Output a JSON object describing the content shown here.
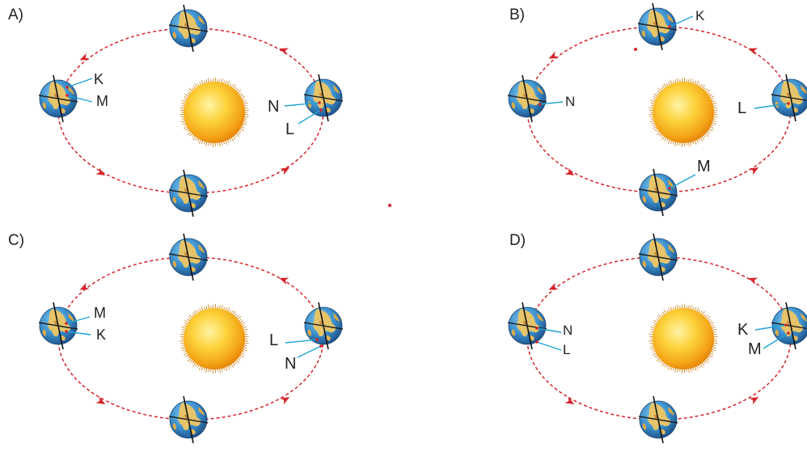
{
  "panels": [
    {
      "letter": "A)",
      "callouts": [
        {
          "text": "K",
          "pos": "left-top"
        },
        {
          "text": "M",
          "pos": "left-bottom"
        },
        {
          "text": "N",
          "pos": "right-top"
        },
        {
          "text": "L",
          "pos": "right-bottom"
        }
      ]
    },
    {
      "letter": "B)",
      "callouts": [
        {
          "text": "K",
          "pos": "top"
        },
        {
          "text": "N",
          "pos": "left"
        },
        {
          "text": "L",
          "pos": "right"
        },
        {
          "text": "M",
          "pos": "bottom"
        }
      ]
    },
    {
      "letter": "C)",
      "callouts": [
        {
          "text": "M",
          "pos": "left-top"
        },
        {
          "text": "K",
          "pos": "left-bottom"
        },
        {
          "text": "L",
          "pos": "right-top"
        },
        {
          "text": "N",
          "pos": "right-bottom"
        }
      ]
    },
    {
      "letter": "D)",
      "callouts": [
        {
          "text": "N",
          "pos": "left-top"
        },
        {
          "text": "L",
          "pos": "left-bottom"
        },
        {
          "text": "K",
          "pos": "right-top"
        },
        {
          "text": "M",
          "pos": "right-bottom"
        }
      ]
    }
  ],
  "colors": {
    "orbit": "#d6242a",
    "leader": "#1ea3d6",
    "sun": "#f7b21b",
    "ocean": "#2f7fc1",
    "land": "#e6c46a"
  },
  "icons": {
    "sun": "sun-icon",
    "earth": "earth-globe-icon"
  }
}
